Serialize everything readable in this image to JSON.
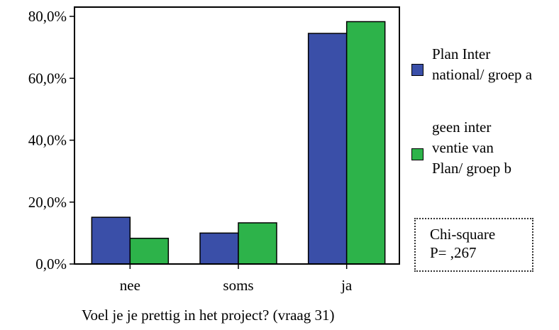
{
  "chart_data": {
    "type": "bar",
    "categories": [
      "nee",
      "soms",
      "ja"
    ],
    "series": [
      {
        "name": "Plan Inter national/  groep a",
        "values": [
          15.1,
          10.0,
          74.5
        ],
        "color": "#3a4fa8"
      },
      {
        "name": "geen inter ventie van Plan/  groep b",
        "values": [
          8.3,
          13.3,
          78.3
        ],
        "color": "#2db34a"
      }
    ],
    "yticks": [
      "0,0%",
      "20,0%",
      "40,0%",
      "60,0%",
      "80,0%"
    ],
    "ytick_values": [
      0,
      20,
      40,
      60,
      80
    ],
    "ylim": [
      0,
      83
    ],
    "xlabel": "Voel je je prettig in het project? (vraag 31)",
    "ylabel": "",
    "grid": false,
    "legend_position": "right"
  },
  "legend": {
    "a_text": "Plan Inter\nnational/  groep a",
    "b_text": "geen inter\nventie van\nPlan/  groep b"
  },
  "stats": {
    "line1": "Chi-square",
    "line2": "P= ,267"
  }
}
